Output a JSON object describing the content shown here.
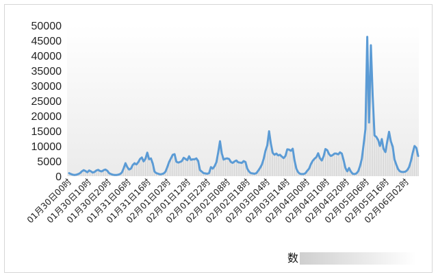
{
  "chart_data": {
    "type": "line",
    "ylim": [
      0,
      50000
    ],
    "yticks": [
      "0",
      "5000",
      "10000",
      "15000",
      "20000",
      "25000",
      "30000",
      "35000",
      "40000",
      "45000",
      "50000"
    ],
    "xtick_labels": [
      "01月30日00时",
      "01月30日10时",
      "01月30日20时",
      "01月31日06时",
      "01月31日16时",
      "02月01日02时",
      "02月01日12时",
      "02月01日22时",
      "02月02日08时",
      "02月02日18时",
      "02月03日04时",
      "02月03日14时",
      "02月04日00时",
      "02月04日10时",
      "02月04日20时",
      "02月05日06时",
      "02月05日16时",
      "02月06日02时"
    ],
    "legend_label": "数",
    "series_color": "#5b9bd5",
    "grid": false,
    "series": [
      {
        "values": [
          1000,
          700,
          500,
          400,
          500,
          700,
          1000,
          1600,
          2000,
          1700,
          1300,
          1900,
          1600,
          1200,
          1400,
          1900,
          2100,
          1700,
          1600,
          2000,
          2200,
          1800,
          1000,
          700,
          500,
          400,
          400,
          500,
          700,
          1200,
          2600,
          4300,
          3000,
          2200,
          2500,
          3700,
          4300,
          3900,
          4600,
          5700,
          6200,
          4900,
          5800,
          7800,
          5600,
          5900,
          4200,
          1500,
          1000,
          800,
          600,
          700,
          900,
          1500,
          3000,
          4700,
          5900,
          7100,
          7300,
          4800,
          4500,
          4700,
          5000,
          6100,
          5700,
          5300,
          6600,
          5400,
          5600,
          5600,
          5900,
          5000,
          2000,
          1500,
          1000,
          900,
          800,
          1000,
          3000,
          2500,
          3300,
          4600,
          7800,
          11600,
          7500,
          5500,
          5800,
          5900,
          5700,
          4700,
          4400,
          4900,
          5200,
          4600,
          4500,
          4400,
          5000,
          4700,
          2500,
          1500,
          1000,
          900,
          800,
          1000,
          1800,
          2700,
          3800,
          5700,
          8400,
          10200,
          14900,
          10700,
          7700,
          7100,
          7500,
          6900,
          7100,
          6500,
          6000,
          6700,
          8900,
          8800,
          8400,
          9100,
          5200,
          2500,
          1300,
          800,
          700,
          700,
          1000,
          1800,
          2500,
          4000,
          5100,
          5800,
          6300,
          7600,
          5900,
          5200,
          6600,
          9000,
          8600,
          7300,
          6700,
          7000,
          7500,
          7500,
          7200,
          7900,
          7500,
          5300,
          2700,
          1600,
          2700,
          1500,
          800,
          700,
          900,
          1600,
          3300,
          5700,
          10500,
          15600,
          46200,
          17800,
          43400,
          26500,
          13500,
          13000,
          12000,
          10000,
          12300,
          9000,
          8000,
          11500,
          14700,
          11500,
          9800,
          5500,
          3800,
          2300,
          1600,
          1400,
          1400,
          1500,
          2000,
          3000,
          5000,
          7700,
          10000,
          9400,
          6700
        ]
      }
    ]
  }
}
